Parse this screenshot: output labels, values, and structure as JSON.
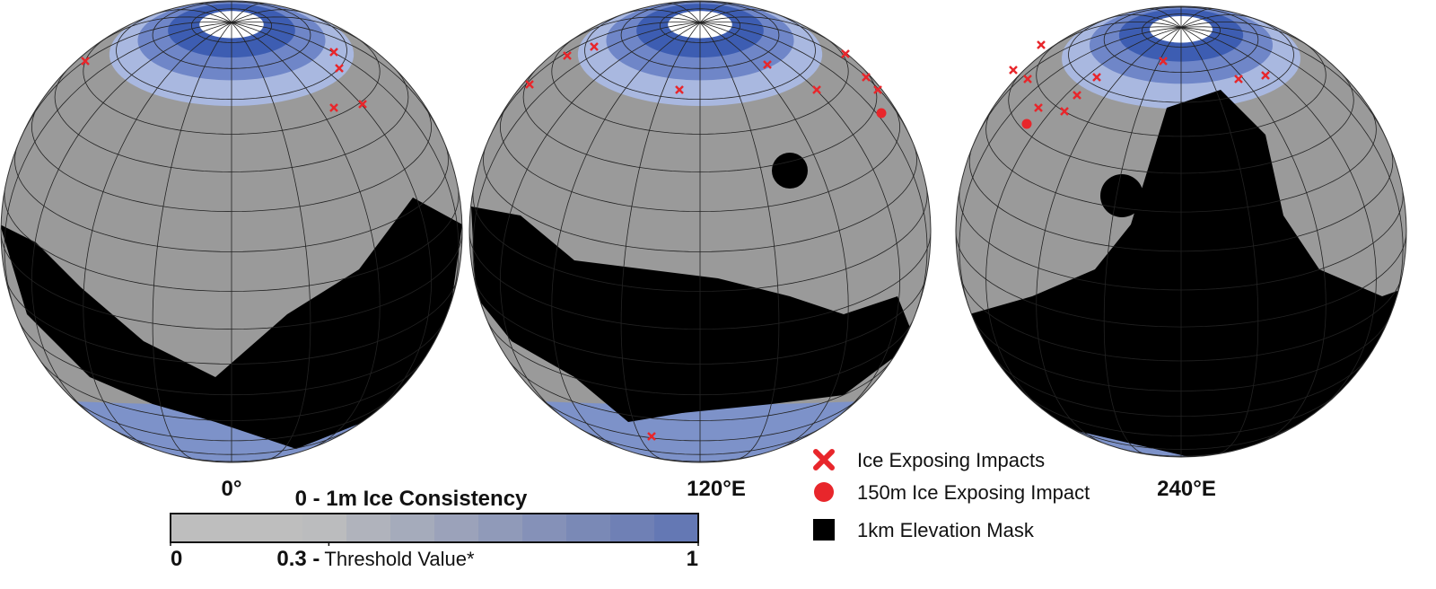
{
  "globes": [
    {
      "label": "0°"
    },
    {
      "label": "120°E"
    },
    {
      "label": "240°E"
    }
  ],
  "colorbar": {
    "title": "0 - 1m Ice Consistency",
    "ticks": [
      0,
      {
        "value": 0.3,
        "label": "0.3 -"
      },
      1
    ],
    "threshold_note": "Threshold Value*"
  },
  "legend": [
    {
      "label": "Ice Exposing Impacts"
    },
    {
      "label": "150m Ice Exposing Impact"
    },
    {
      "label": "1km Elevation Mask"
    }
  ]
}
